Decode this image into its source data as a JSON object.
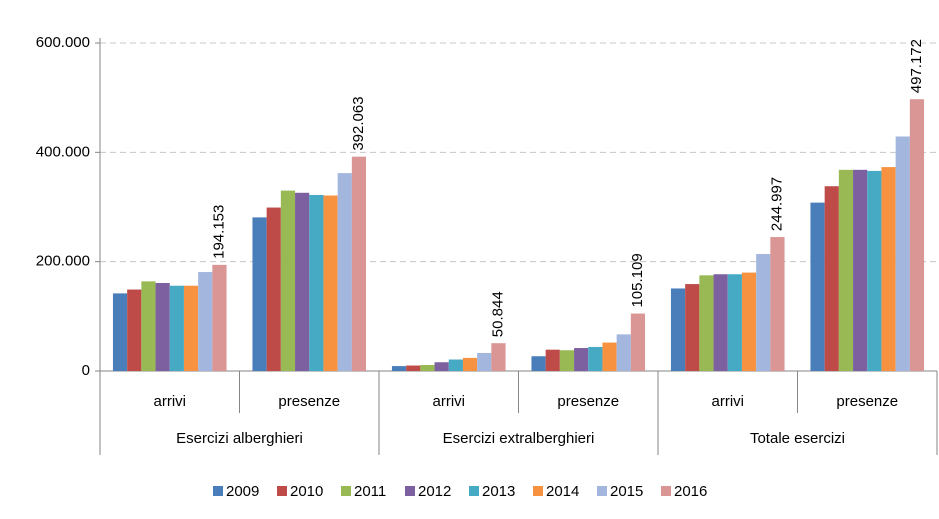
{
  "chart_data": {
    "type": "bar",
    "groups": [
      {
        "label": "Esercizi alberghieri",
        "categories": [
          "arrivi",
          "presenze"
        ]
      },
      {
        "label": "Esercizi extralberghieri",
        "categories": [
          "arrivi",
          "presenze"
        ]
      },
      {
        "label": "Totale esercizi",
        "categories": [
          "arrivi",
          "presenze"
        ]
      }
    ],
    "series": [
      {
        "name": "2009",
        "color": "#4a7ebb",
        "values": [
          142000,
          281000,
          9000,
          27000,
          151000,
          308000
        ]
      },
      {
        "name": "2010",
        "color": "#be4b48",
        "values": [
          149000,
          299000,
          10000,
          39000,
          159000,
          338000
        ]
      },
      {
        "name": "2011",
        "color": "#98b954",
        "values": [
          164000,
          330000,
          11000,
          38000,
          175000,
          368000
        ]
      },
      {
        "name": "2012",
        "color": "#7d60a0",
        "values": [
          161000,
          326000,
          16000,
          42000,
          177000,
          368000
        ]
      },
      {
        "name": "2013",
        "color": "#46aac5",
        "values": [
          156000,
          322000,
          21000,
          44000,
          177000,
          366000
        ]
      },
      {
        "name": "2014",
        "color": "#f69240",
        "values": [
          156000,
          321000,
          24000,
          52000,
          180000,
          373000
        ]
      },
      {
        "name": "2015",
        "color": "#a2b6de",
        "values": [
          181000,
          362000,
          33000,
          67000,
          214000,
          429000
        ]
      },
      {
        "name": "2016",
        "color": "#d99694",
        "values": [
          194153,
          392063,
          50844,
          105109,
          244997,
          497172
        ],
        "value_labels": [
          "194.153",
          "392.063",
          "50.844",
          "105.109",
          "244.997",
          "497.172"
        ]
      }
    ],
    "ylim": [
      0,
      600000
    ],
    "yticks": [
      0,
      {
        "value": 200000,
        "label": "200.000"
      },
      {
        "value": 400000,
        "label": "400.000"
      },
      {
        "value": 600000,
        "label": "600.000"
      }
    ],
    "grid": true
  }
}
